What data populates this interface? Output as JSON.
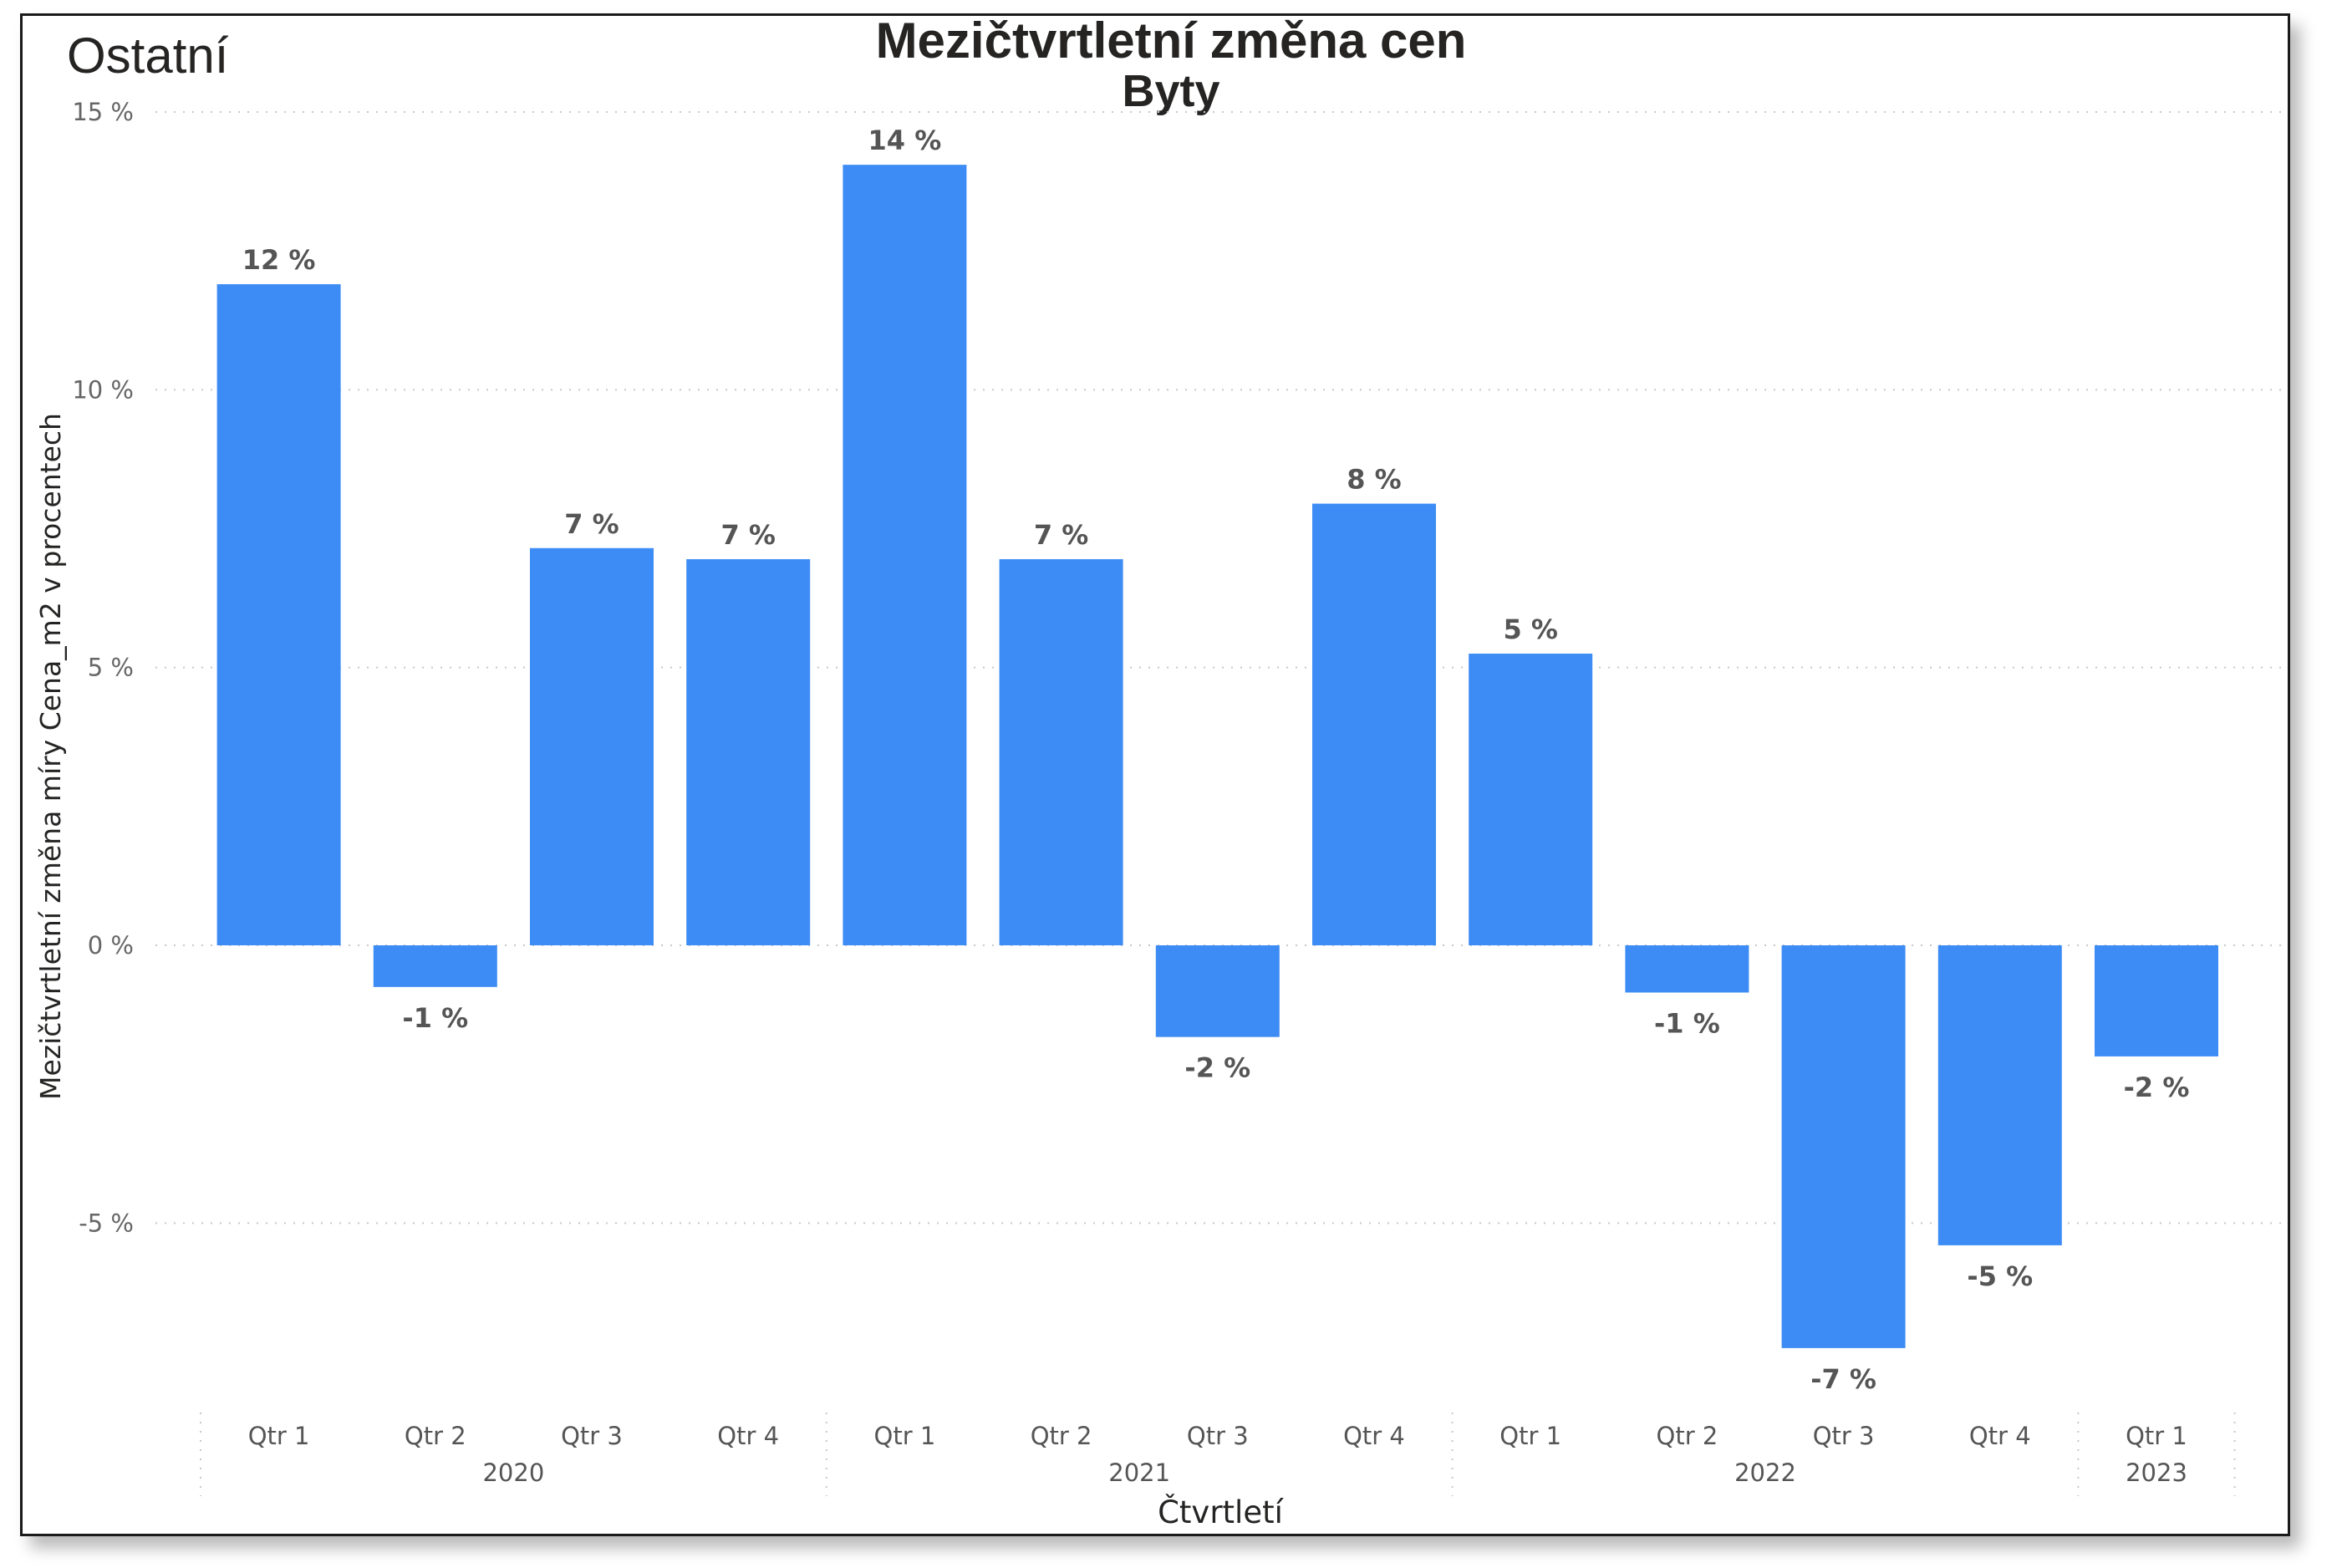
{
  "corner_label": "Ostatní",
  "chart_data": {
    "type": "bar",
    "title": "Mezičtvrtletní změna cen",
    "subtitle": "Byty",
    "ylabel": "Mezičtvrtletní změna míry Cena_m2 v procentech",
    "xlabel": "Čtvrtletí",
    "ylim": [
      -8.3,
      15
    ],
    "yticks": [
      -5,
      0,
      5,
      10,
      15
    ],
    "ytick_labels": [
      "-5 %",
      "0 %",
      "5 %",
      "10 %",
      "15 %"
    ],
    "grid": true,
    "bar_color": "#3D8CF5",
    "categories": [
      "Qtr 1",
      "Qtr 2",
      "Qtr 3",
      "Qtr 4",
      "Qtr 1",
      "Qtr 2",
      "Qtr 3",
      "Qtr 4",
      "Qtr 1",
      "Qtr 2",
      "Qtr 3",
      "Qtr 4",
      "Qtr 1"
    ],
    "groups": [
      {
        "label": "2020",
        "count": 4
      },
      {
        "label": "2021",
        "count": 4
      },
      {
        "label": "2022",
        "count": 4
      },
      {
        "label": "2023",
        "count": 1
      }
    ],
    "values": [
      11.9,
      -0.75,
      7.15,
      6.95,
      14.05,
      6.95,
      -1.65,
      7.95,
      5.25,
      -0.85,
      -7.25,
      -5.4,
      -2.0
    ],
    "data_labels": [
      "12 %",
      "-1 %",
      "7 %",
      "7 %",
      "14 %",
      "7 %",
      "-2 %",
      "8 %",
      "5 %",
      "-1 %",
      "-7 %",
      "-5 %",
      "-2 %"
    ]
  }
}
